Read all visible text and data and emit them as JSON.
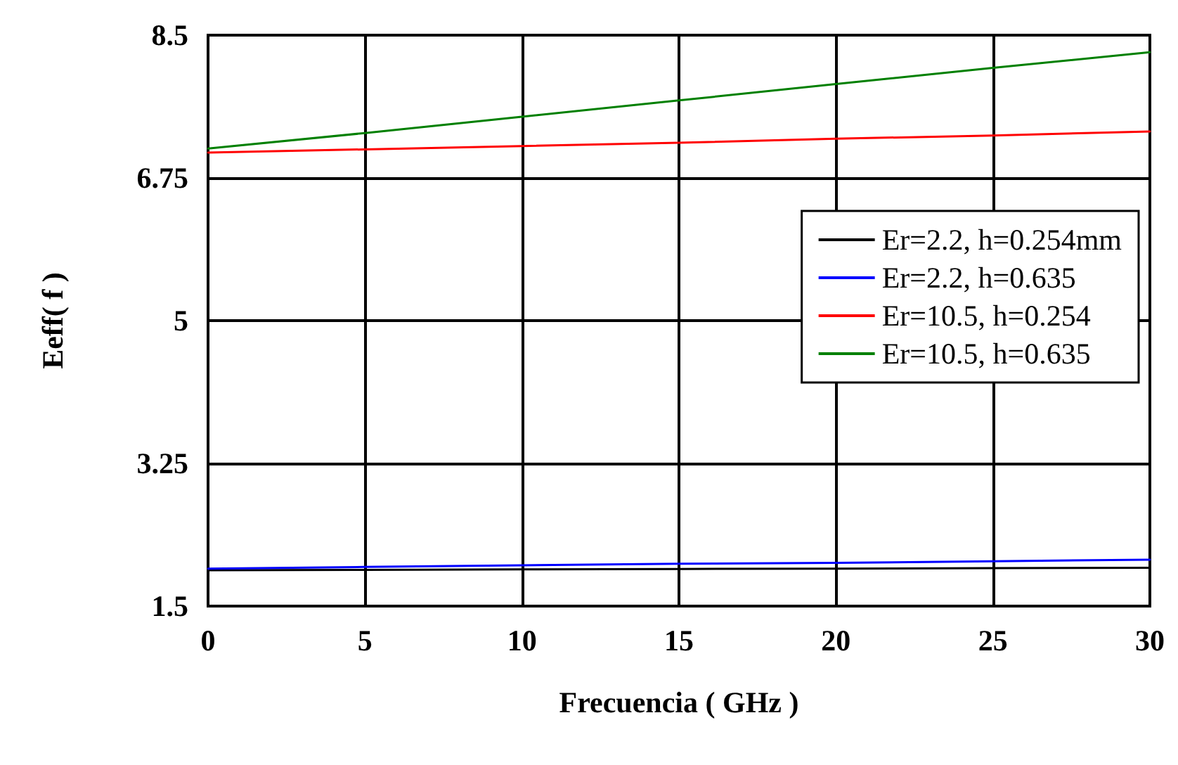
{
  "chart_data": {
    "type": "line",
    "xlabel": "Frecuencia ( GHz )",
    "ylabel": "Eeff( f )",
    "x": [
      0,
      5,
      10,
      15,
      20,
      25,
      30
    ],
    "series": [
      {
        "name": "Er=2.2, h=0.254mm",
        "color": "#000000",
        "values": [
          1.94,
          1.945,
          1.95,
          1.955,
          1.96,
          1.965,
          1.97
        ]
      },
      {
        "name": "Er=2.2, h=0.635",
        "color": "#0000ff",
        "values": [
          1.96,
          1.98,
          2.0,
          2.02,
          2.03,
          2.05,
          2.07
        ]
      },
      {
        "name": "Er=10.5, h=0.254",
        "color": "#ff0000",
        "values": [
          7.06,
          7.1,
          7.14,
          7.18,
          7.23,
          7.27,
          7.32
        ]
      },
      {
        "name": "Er=10.5, h=0.635",
        "color": "#008000",
        "values": [
          7.11,
          7.3,
          7.5,
          7.7,
          7.9,
          8.1,
          8.29
        ]
      }
    ],
    "xlim": [
      0,
      30
    ],
    "xticks": [
      0,
      5,
      10,
      15,
      20,
      25,
      30
    ],
    "ylim": [
      1.5,
      8.5
    ],
    "yticks": [
      1.5,
      3.25,
      5,
      6.75,
      8.5
    ],
    "grid": true,
    "legend": "right",
    "marker": "none",
    "line_style": "solid"
  }
}
